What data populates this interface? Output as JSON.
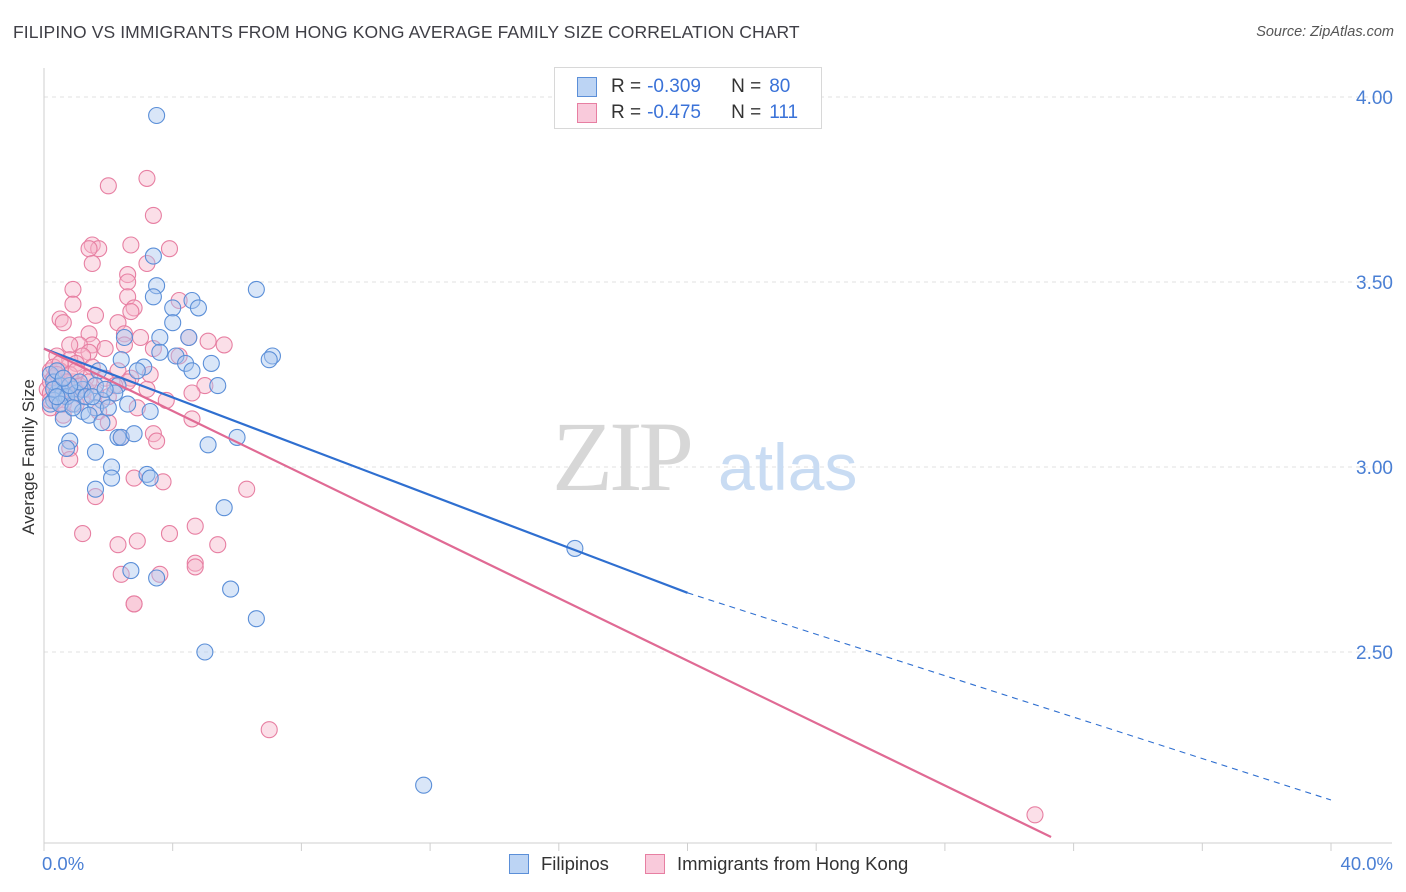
{
  "title": "FILIPINO VS IMMIGRANTS FROM HONG KONG AVERAGE FAMILY SIZE CORRELATION CHART",
  "source": "Source: ZipAtlas.com",
  "watermark": {
    "zip": "ZIP",
    "atlas": "atlas"
  },
  "legend": {
    "rows": [
      {
        "r_label": "R =",
        "r_value": "-0.309",
        "n_label": "N =",
        "n_value": "80"
      },
      {
        "r_label": "R =",
        "r_value": "-0.475",
        "n_label": "N =",
        "n_value": "111"
      }
    ]
  },
  "bottom_legend": [
    "Filipinos",
    "Immigrants from Hong Kong"
  ],
  "colors": {
    "blue_fill": "#aac8f0",
    "blue_stroke": "#5b8fd8",
    "blue_line": "#2f6fd0",
    "pink_fill": "#f6b9cc",
    "pink_stroke": "#e77fa2",
    "pink_line": "#e06a94",
    "tick_label": "#4a7fd4",
    "grid": "#e2e2e2"
  },
  "chart_data": {
    "type": "scatter",
    "title": "FILIPINO VS IMMIGRANTS FROM HONG KONG AVERAGE FAMILY SIZE CORRELATION CHART",
    "xlabel": "",
    "ylabel": "Average Family Size",
    "xlim": [
      0,
      40
    ],
    "ylim": [
      2.0,
      4.05
    ],
    "x_tick_labels": [
      "0.0%",
      "40.0%"
    ],
    "y_ticks": [
      2.5,
      3.0,
      3.5,
      4.0
    ],
    "y_tick_labels": [
      "2.50",
      "3.00",
      "3.50",
      "4.00"
    ],
    "grid": true,
    "series": [
      {
        "name": "Filipinos",
        "r": -0.309,
        "n": 80,
        "trend": {
          "x0": 0,
          "y0": 3.32,
          "x1": 20,
          "y1": 2.66,
          "dashed_to_x": 40,
          "dashed_to_y": 2.1
        },
        "points": [
          [
            3.5,
            3.95
          ],
          [
            3.4,
            3.57
          ],
          [
            6.6,
            3.48
          ],
          [
            3.5,
            3.49
          ],
          [
            3.4,
            3.46
          ],
          [
            4.6,
            3.45
          ],
          [
            4.0,
            3.43
          ],
          [
            4.8,
            3.43
          ],
          [
            4.0,
            3.39
          ],
          [
            3.6,
            3.35
          ],
          [
            2.5,
            3.35
          ],
          [
            4.5,
            3.35
          ],
          [
            3.6,
            3.31
          ],
          [
            4.1,
            3.3
          ],
          [
            7.1,
            3.3
          ],
          [
            7.0,
            3.29
          ],
          [
            2.4,
            3.29
          ],
          [
            5.2,
            3.28
          ],
          [
            4.4,
            3.28
          ],
          [
            3.1,
            3.27
          ],
          [
            4.6,
            3.26
          ],
          [
            2.9,
            3.26
          ],
          [
            1.7,
            3.26
          ],
          [
            2.3,
            3.22
          ],
          [
            1.6,
            3.22
          ],
          [
            5.4,
            3.22
          ],
          [
            0.9,
            3.21
          ],
          [
            1.2,
            3.21
          ],
          [
            2.2,
            3.2
          ],
          [
            0.4,
            3.2
          ],
          [
            1.8,
            3.18
          ],
          [
            0.9,
            3.17
          ],
          [
            1.6,
            3.16
          ],
          [
            2.0,
            3.16
          ],
          [
            1.2,
            3.15
          ],
          [
            3.3,
            3.15
          ],
          [
            1.4,
            3.14
          ],
          [
            0.6,
            3.13
          ],
          [
            1.8,
            3.12
          ],
          [
            2.3,
            3.08
          ],
          [
            2.4,
            3.08
          ],
          [
            6.0,
            3.08
          ],
          [
            2.8,
            3.09
          ],
          [
            0.8,
            3.07
          ],
          [
            5.1,
            3.06
          ],
          [
            0.7,
            3.05
          ],
          [
            1.6,
            3.04
          ],
          [
            2.1,
            3.0
          ],
          [
            3.2,
            2.98
          ],
          [
            3.3,
            2.97
          ],
          [
            2.1,
            2.97
          ],
          [
            1.6,
            2.94
          ],
          [
            5.6,
            2.89
          ],
          [
            16.5,
            2.78
          ],
          [
            2.7,
            2.72
          ],
          [
            3.5,
            2.7
          ],
          [
            5.8,
            2.67
          ],
          [
            6.6,
            2.59
          ],
          [
            5.0,
            2.5
          ],
          [
            11.8,
            2.14
          ],
          [
            0.2,
            3.25
          ],
          [
            0.3,
            3.23
          ],
          [
            0.5,
            3.22
          ],
          [
            0.6,
            3.2
          ],
          [
            0.3,
            3.18
          ],
          [
            0.7,
            3.19
          ],
          [
            1.0,
            3.2
          ],
          [
            0.2,
            3.17
          ],
          [
            1.1,
            3.23
          ],
          [
            1.3,
            3.19
          ],
          [
            0.4,
            3.26
          ],
          [
            0.8,
            3.22
          ],
          [
            0.5,
            3.17
          ],
          [
            0.9,
            3.16
          ],
          [
            1.5,
            3.19
          ],
          [
            0.3,
            3.21
          ],
          [
            0.6,
            3.24
          ],
          [
            1.9,
            3.21
          ],
          [
            2.6,
            3.17
          ],
          [
            0.4,
            3.19
          ]
        ]
      },
      {
        "name": "Immigrants from Hong Kong",
        "r": -0.475,
        "n": 111,
        "trend": {
          "x0": 0,
          "y0": 3.32,
          "x1": 31.3,
          "y1": 2.0
        },
        "points": [
          [
            3.2,
            3.78
          ],
          [
            2.0,
            3.76
          ],
          [
            3.4,
            3.68
          ],
          [
            1.5,
            3.6
          ],
          [
            2.7,
            3.6
          ],
          [
            3.9,
            3.59
          ],
          [
            1.7,
            3.59
          ],
          [
            1.4,
            3.59
          ],
          [
            3.2,
            3.55
          ],
          [
            1.5,
            3.55
          ],
          [
            2.6,
            3.52
          ],
          [
            2.6,
            3.5
          ],
          [
            0.9,
            3.48
          ],
          [
            2.6,
            3.46
          ],
          [
            4.2,
            3.45
          ],
          [
            0.9,
            3.44
          ],
          [
            2.8,
            3.43
          ],
          [
            2.7,
            3.42
          ],
          [
            1.6,
            3.41
          ],
          [
            0.5,
            3.4
          ],
          [
            2.3,
            3.39
          ],
          [
            0.6,
            3.39
          ],
          [
            2.5,
            3.36
          ],
          [
            1.4,
            3.36
          ],
          [
            3.0,
            3.35
          ],
          [
            4.5,
            3.35
          ],
          [
            5.1,
            3.34
          ],
          [
            1.5,
            3.33
          ],
          [
            1.1,
            3.33
          ],
          [
            0.8,
            3.33
          ],
          [
            5.6,
            3.33
          ],
          [
            2.5,
            3.33
          ],
          [
            1.9,
            3.32
          ],
          [
            3.4,
            3.32
          ],
          [
            1.4,
            3.31
          ],
          [
            1.2,
            3.3
          ],
          [
            4.2,
            3.3
          ],
          [
            0.4,
            3.3
          ],
          [
            0.8,
            3.29
          ],
          [
            1.0,
            3.28
          ],
          [
            1.5,
            3.27
          ],
          [
            2.3,
            3.26
          ],
          [
            0.5,
            3.26
          ],
          [
            0.2,
            3.26
          ],
          [
            3.3,
            3.25
          ],
          [
            2.7,
            3.24
          ],
          [
            1.3,
            3.24
          ],
          [
            0.9,
            3.23
          ],
          [
            2.6,
            3.23
          ],
          [
            5.0,
            3.22
          ],
          [
            0.3,
            3.22
          ],
          [
            3.2,
            3.21
          ],
          [
            0.7,
            3.21
          ],
          [
            0.1,
            3.21
          ],
          [
            4.6,
            3.2
          ],
          [
            2.0,
            3.19
          ],
          [
            1.2,
            3.19
          ],
          [
            0.4,
            3.18
          ],
          [
            3.8,
            3.18
          ],
          [
            1.0,
            3.17
          ],
          [
            2.9,
            3.16
          ],
          [
            0.2,
            3.16
          ],
          [
            1.7,
            3.15
          ],
          [
            0.6,
            3.14
          ],
          [
            4.6,
            3.13
          ],
          [
            2.0,
            3.12
          ],
          [
            3.4,
            3.09
          ],
          [
            2.4,
            3.08
          ],
          [
            3.5,
            3.07
          ],
          [
            0.8,
            3.05
          ],
          [
            0.8,
            3.02
          ],
          [
            2.8,
            2.97
          ],
          [
            3.7,
            2.96
          ],
          [
            1.6,
            2.92
          ],
          [
            6.3,
            2.94
          ],
          [
            4.7,
            2.84
          ],
          [
            3.9,
            2.82
          ],
          [
            1.2,
            2.82
          ],
          [
            2.9,
            2.8
          ],
          [
            5.4,
            2.79
          ],
          [
            2.3,
            2.79
          ],
          [
            4.7,
            2.74
          ],
          [
            4.7,
            2.73
          ],
          [
            2.4,
            2.71
          ],
          [
            3.6,
            2.71
          ],
          [
            2.8,
            2.63
          ],
          [
            2.8,
            2.63
          ],
          [
            7.0,
            2.29
          ],
          [
            30.8,
            2.06
          ],
          [
            0.2,
            3.23
          ],
          [
            0.3,
            3.24
          ],
          [
            0.5,
            3.21
          ],
          [
            0.6,
            3.22
          ],
          [
            0.4,
            3.19
          ],
          [
            0.7,
            3.2
          ],
          [
            0.2,
            3.2
          ],
          [
            0.9,
            3.21
          ],
          [
            1.1,
            3.22
          ],
          [
            0.3,
            3.27
          ],
          [
            0.5,
            3.28
          ],
          [
            0.8,
            3.25
          ],
          [
            1.3,
            3.21
          ],
          [
            1.6,
            3.2
          ],
          [
            0.6,
            3.17
          ],
          [
            0.2,
            3.18
          ],
          [
            1.9,
            3.24
          ],
          [
            0.4,
            3.25
          ],
          [
            1.0,
            3.26
          ],
          [
            2.2,
            3.22
          ],
          [
            0.7,
            3.23
          ],
          [
            1.4,
            3.23
          ]
        ]
      }
    ]
  }
}
